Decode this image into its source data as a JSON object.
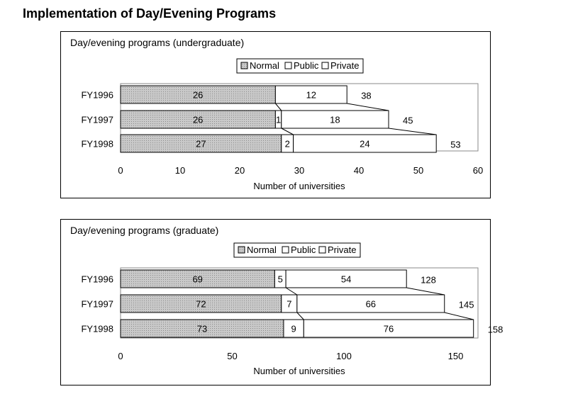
{
  "page": {
    "title": "Implementation of Day/Evening Programs"
  },
  "colors": {
    "normal": "#c9c9c9",
    "public": "#ffffff",
    "private": "#ffffff",
    "border": "#000000"
  },
  "chart_data": [
    {
      "type": "bar",
      "orientation": "horizontal",
      "stacked": true,
      "title": "Day/evening programs (undergraduate)",
      "xlabel": "Number of universities",
      "ylabel": "",
      "xlim": [
        0,
        60
      ],
      "xticks": [
        "0",
        "10",
        "20",
        "30",
        "40",
        "50",
        "60"
      ],
      "legend": "top",
      "categories": [
        "FY1996",
        "FY1997",
        "FY1998"
      ],
      "series": [
        {
          "name": "Normal",
          "values": [
            26,
            26,
            27
          ],
          "labels": [
            "26",
            "26",
            "27"
          ]
        },
        {
          "name": "Public",
          "values": [
            0,
            1,
            2
          ],
          "labels": [
            "",
            "1",
            "2"
          ]
        },
        {
          "name": "Private",
          "values": [
            12,
            18,
            24
          ],
          "labels": [
            "12",
            "18",
            "24"
          ]
        }
      ],
      "totals": [
        "38",
        "45",
        "53"
      ]
    },
    {
      "type": "bar",
      "orientation": "horizontal",
      "stacked": true,
      "title": "Day/evening programs (graduate)",
      "xlabel": "Number of universities",
      "ylabel": "",
      "xlim": [
        0,
        160
      ],
      "xticks": [
        "0",
        "50",
        "100",
        "150"
      ],
      "xtick_values": [
        0,
        50,
        100,
        150
      ],
      "legend": "top",
      "categories": [
        "FY1996",
        "FY1997",
        "FY1998"
      ],
      "series": [
        {
          "name": "Normal",
          "values": [
            69,
            72,
            73
          ],
          "labels": [
            "69",
            "72",
            "73"
          ]
        },
        {
          "name": "Public",
          "values": [
            5,
            7,
            9
          ],
          "labels": [
            "5",
            "7",
            "9"
          ]
        },
        {
          "name": "Private",
          "values": [
            54,
            66,
            76
          ],
          "labels": [
            "54",
            "66",
            "76"
          ]
        }
      ],
      "totals": [
        "128",
        "145",
        "158"
      ]
    }
  ]
}
